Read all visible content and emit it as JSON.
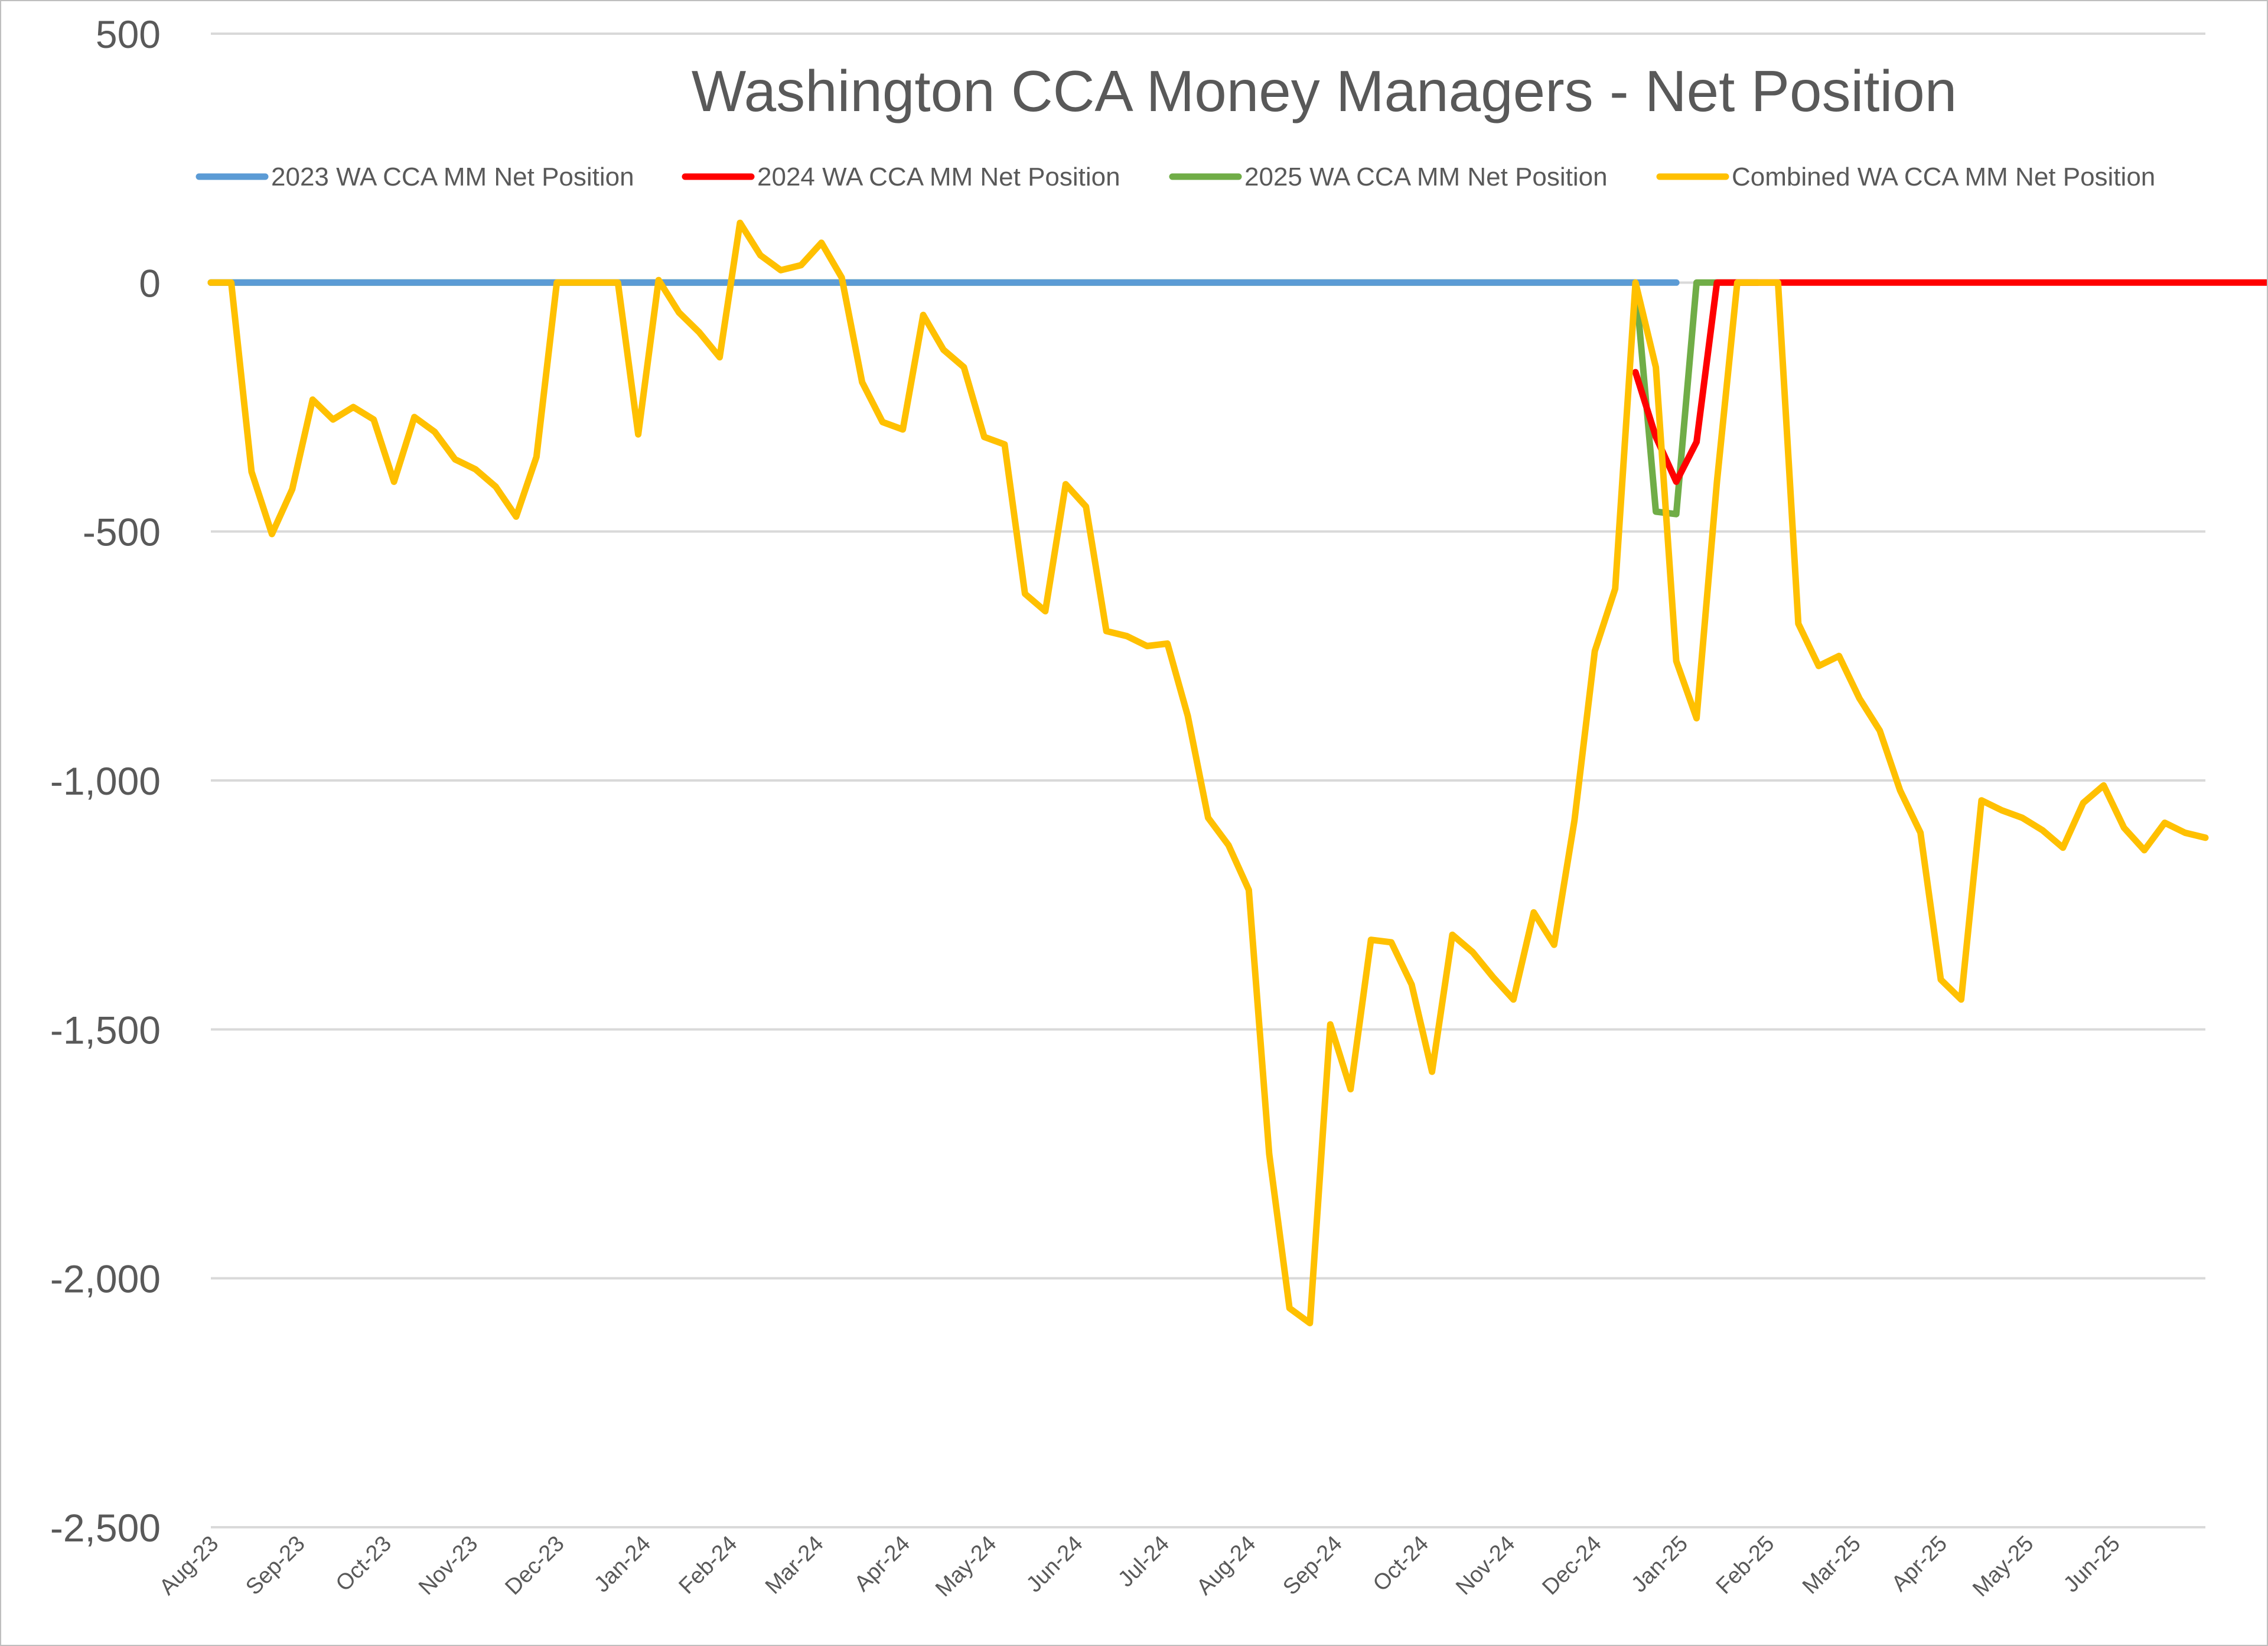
{
  "chart_data": {
    "type": "line",
    "title": "Washington CCA Money Managers - Net Position",
    "xlabel": "",
    "ylabel": "",
    "ylim": [
      -2500,
      500
    ],
    "yticks": [
      500,
      0,
      -500,
      -1000,
      -1500,
      -2000,
      -2500
    ],
    "ytick_labels": [
      "500",
      "0",
      "-500",
      "-1,000",
      "-1,500",
      "-2,000",
      "-2,500"
    ],
    "xtick_labels": [
      "Aug-23",
      "Sep-23",
      "Oct-23",
      "Nov-23",
      "Dec-23",
      "Jan-24",
      "Feb-24",
      "Mar-24",
      "Apr-24",
      "May-24",
      "Jun-24",
      "Jul-24",
      "Aug-24",
      "Sep-24",
      "Oct-24",
      "Nov-24",
      "Dec-24",
      "Jan-25",
      "Feb-25",
      "Mar-25",
      "Apr-25",
      "May-25",
      "Jun-25"
    ],
    "grid": true,
    "legend_position": "top",
    "series": [
      {
        "name": "2023 WA CCA MM Net Position",
        "color": "#5b9bd5",
        "points": [
          [
            0,
            0
          ],
          [
            72,
            0
          ]
        ]
      },
      {
        "name": "2024 WA CCA MM Net Position",
        "color": "#ff0000",
        "points": [
          [
            70,
            -180
          ],
          [
            71,
            -310
          ],
          [
            72,
            -400
          ],
          [
            73,
            -320
          ],
          [
            74,
            0
          ],
          [
            101,
            0
          ]
        ]
      },
      {
        "name": "2025 WA CCA MM Net Position",
        "color": "#70ad47",
        "points": [
          [
            0,
            0
          ],
          [
            70,
            0
          ],
          [
            71,
            -460
          ],
          [
            72,
            -465
          ],
          [
            73,
            0
          ],
          [
            76,
            0
          ]
        ]
      },
      {
        "name": "Combined WA CCA MM Net Position",
        "color": "#ffc000",
        "points": [
          [
            0,
            0
          ],
          [
            1,
            0
          ],
          [
            2,
            -380
          ],
          [
            3,
            -505
          ],
          [
            4,
            -415
          ],
          [
            5,
            -235
          ],
          [
            6,
            -275
          ],
          [
            7,
            -250
          ],
          [
            8,
            -275
          ],
          [
            9,
            -400
          ],
          [
            10,
            -270
          ],
          [
            11,
            -300
          ],
          [
            12,
            -355
          ],
          [
            13,
            -375
          ],
          [
            14,
            -410
          ],
          [
            15,
            -470
          ],
          [
            16,
            -350
          ],
          [
            17,
            0
          ],
          [
            18,
            0
          ],
          [
            19,
            0
          ],
          [
            20,
            0
          ],
          [
            21,
            -305
          ],
          [
            22,
            5
          ],
          [
            23,
            -60
          ],
          [
            24,
            -100
          ],
          [
            25,
            -150
          ],
          [
            26,
            120
          ],
          [
            27,
            55
          ],
          [
            28,
            25
          ],
          [
            29,
            35
          ],
          [
            30,
            80
          ],
          [
            31,
            10
          ],
          [
            32,
            -200
          ],
          [
            33,
            -280
          ],
          [
            34,
            -295
          ],
          [
            35,
            -65
          ],
          [
            36,
            -135
          ],
          [
            37,
            -170
          ],
          [
            38,
            -310
          ],
          [
            39,
            -325
          ],
          [
            40,
            -625
          ],
          [
            41,
            -660
          ],
          [
            42,
            -405
          ],
          [
            43,
            -450
          ],
          [
            44,
            -700
          ],
          [
            45,
            -710
          ],
          [
            46,
            -730
          ],
          [
            47,
            -725
          ],
          [
            48,
            -870
          ],
          [
            49,
            -1075
          ],
          [
            50,
            -1130
          ],
          [
            51,
            -1220
          ],
          [
            52,
            -1750
          ],
          [
            53,
            -2060
          ],
          [
            54,
            -2090
          ],
          [
            55,
            -1490
          ],
          [
            56,
            -1620
          ],
          [
            57,
            -1320
          ],
          [
            58,
            -1325
          ],
          [
            59,
            -1410
          ],
          [
            60,
            -1585
          ],
          [
            61,
            -1310
          ],
          [
            62,
            -1345
          ],
          [
            63,
            -1395
          ],
          [
            64,
            -1440
          ],
          [
            65,
            -1265
          ],
          [
            66,
            -1330
          ],
          [
            67,
            -1080
          ],
          [
            68,
            -740
          ],
          [
            69,
            -615
          ],
          [
            70,
            0
          ],
          [
            71,
            -170
          ],
          [
            72,
            -760
          ],
          [
            73,
            -875
          ],
          [
            74,
            -400
          ],
          [
            75,
            0
          ],
          [
            76,
            0
          ],
          [
            77,
            0
          ],
          [
            78,
            -685
          ],
          [
            79,
            -770
          ],
          [
            80,
            -750
          ],
          [
            81,
            -835
          ],
          [
            82,
            -900
          ],
          [
            83,
            -1020
          ],
          [
            84,
            -1105
          ],
          [
            85,
            -1400
          ],
          [
            86,
            -1440
          ],
          [
            87,
            -1040
          ],
          [
            88,
            -1060
          ],
          [
            89,
            -1075
          ],
          [
            90,
            -1100
          ],
          [
            91,
            -1135
          ],
          [
            92,
            -1045
          ],
          [
            93,
            -1010
          ],
          [
            94,
            -1095
          ],
          [
            95,
            -1140
          ],
          [
            96,
            -1085
          ],
          [
            97,
            -1105
          ],
          [
            98,
            -1115
          ]
        ]
      }
    ]
  }
}
